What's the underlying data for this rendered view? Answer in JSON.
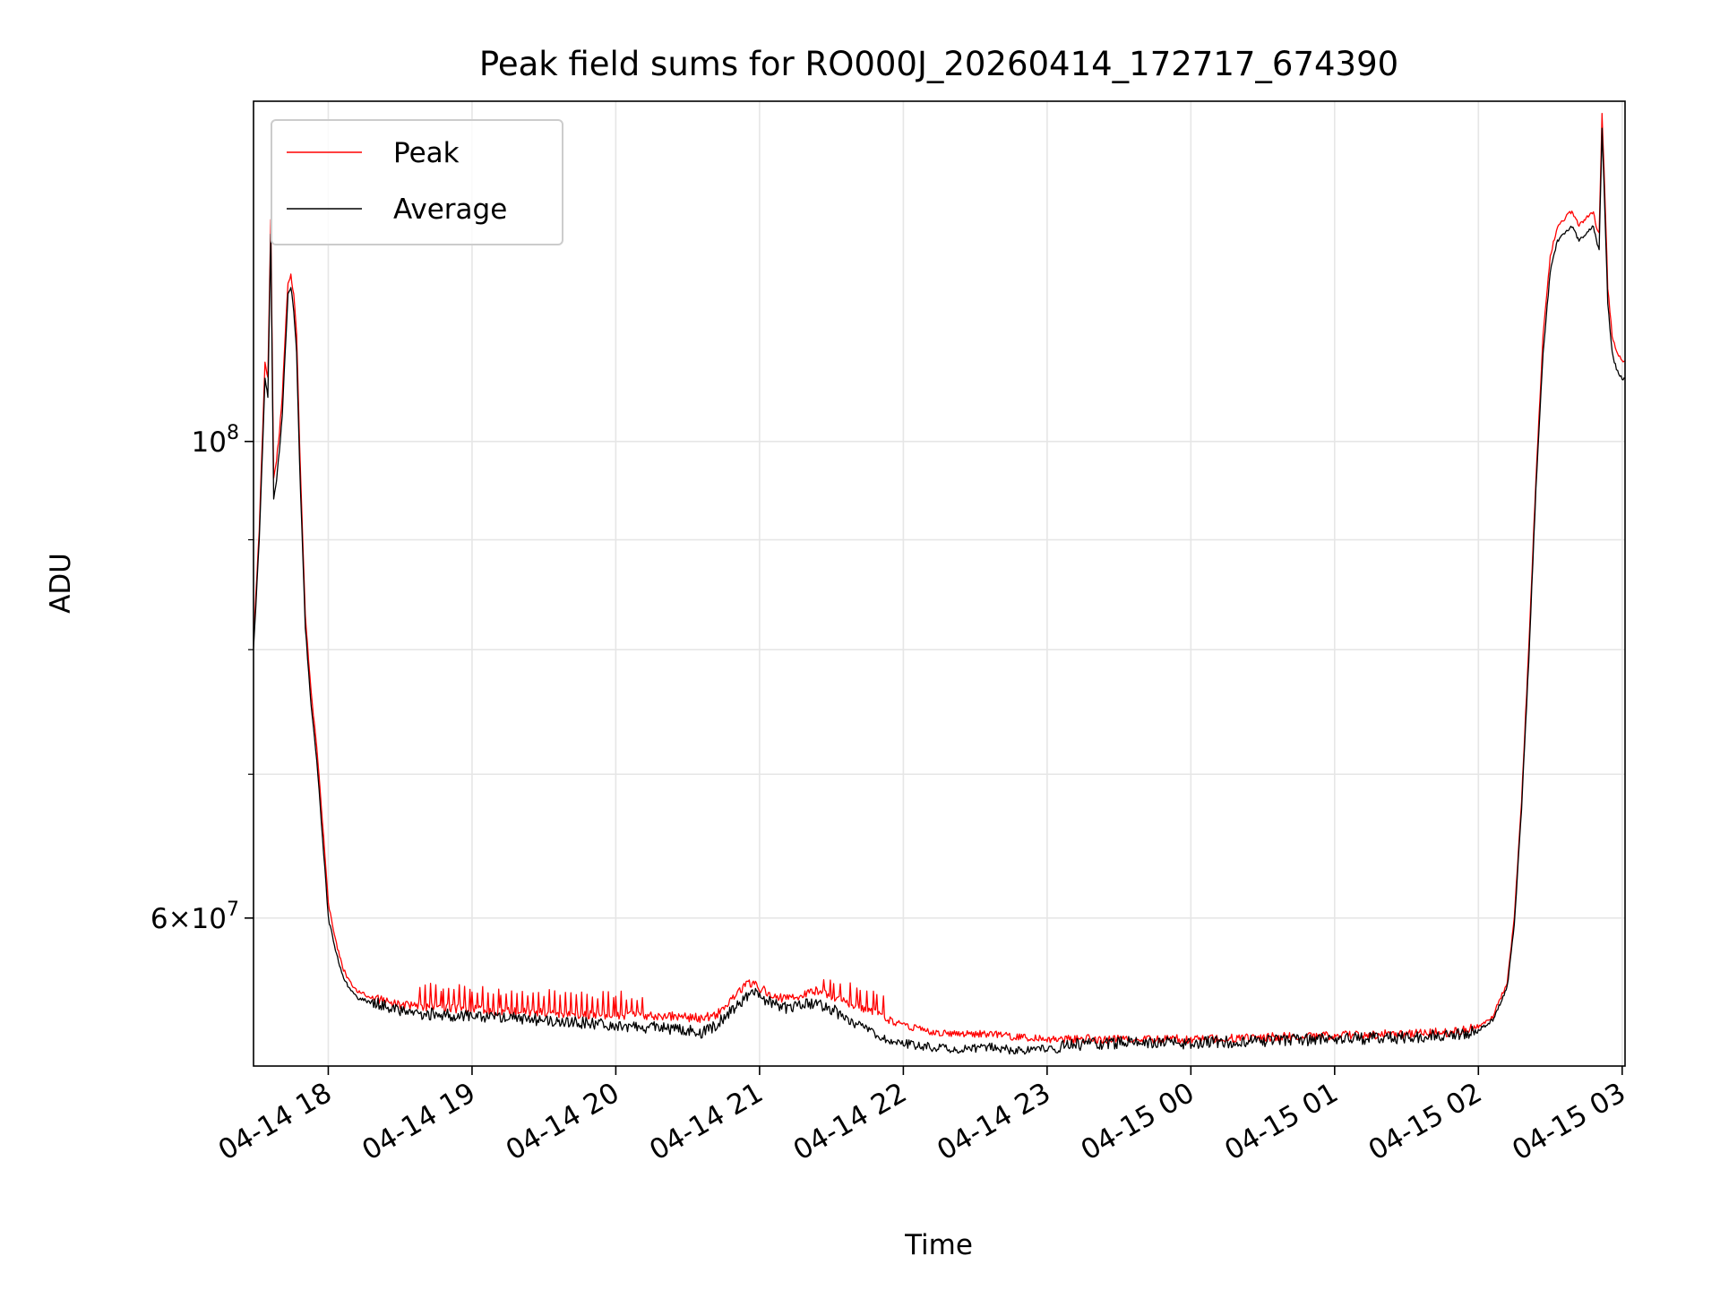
{
  "chart_data": {
    "type": "line",
    "title": "Peak field sums for RO000J_20260414_172717_674390",
    "xlabel": "Time",
    "ylabel": "ADU",
    "yscale": "log",
    "xlim_hours": [
      17.48,
      27.02
    ],
    "ylim": [
      51200000,
      144000000
    ],
    "x_unit": "hours since 2026-04-14 00:00",
    "x_ticks": [
      {
        "value": 18,
        "label": "04-14 18"
      },
      {
        "value": 19,
        "label": "04-14 19"
      },
      {
        "value": 20,
        "label": "04-14 20"
      },
      {
        "value": 21,
        "label": "04-14 21"
      },
      {
        "value": 22,
        "label": "04-14 22"
      },
      {
        "value": 23,
        "label": "04-14 23"
      },
      {
        "value": 24,
        "label": "04-15 00"
      },
      {
        "value": 25,
        "label": "04-15 01"
      },
      {
        "value": 26,
        "label": "04-15 02"
      },
      {
        "value": 27,
        "label": "04-15 03"
      }
    ],
    "y_major_ticks": [
      {
        "value": 100000000,
        "base": "10",
        "exp": "8",
        "mant": ""
      },
      {
        "value": 60000000,
        "base": "10",
        "exp": "7",
        "mant": "6"
      }
    ],
    "y_minor_ticks": [
      60000000,
      70000000,
      80000000,
      90000000,
      100000000
    ],
    "grid": true,
    "legend": {
      "placement": "top-left",
      "entries": [
        {
          "name": "Peak",
          "color": "#ff0000"
        },
        {
          "name": "Average",
          "color": "#000000"
        }
      ]
    },
    "series": [
      {
        "name": "Peak",
        "color": "#ff0000",
        "x": [
          17.48,
          17.52,
          17.56,
          17.58,
          17.6,
          17.62,
          17.64,
          17.66,
          17.68,
          17.7,
          17.72,
          17.74,
          17.76,
          17.78,
          17.8,
          17.84,
          17.88,
          17.92,
          17.96,
          18.0,
          18.05,
          18.1,
          18.15,
          18.2,
          18.3,
          18.4,
          18.5,
          18.6,
          18.8,
          19.0,
          19.2,
          19.5,
          19.8,
          20.0,
          20.2,
          20.4,
          20.6,
          20.7,
          20.8,
          20.9,
          20.95,
          21.0,
          21.1,
          21.2,
          21.3,
          21.4,
          21.5,
          21.6,
          21.7,
          21.8,
          21.9,
          22.0,
          22.1,
          22.2,
          22.4,
          22.6,
          22.7,
          22.8,
          23.0,
          23.2,
          23.5,
          24.0,
          24.5,
          25.0,
          25.5,
          25.8,
          26.0,
          26.1,
          26.15,
          26.2,
          26.25,
          26.3,
          26.35,
          26.4,
          26.45,
          26.5,
          26.55,
          26.6,
          26.65,
          26.7,
          26.75,
          26.8,
          26.82,
          26.84,
          26.86,
          26.88,
          26.9,
          26.93,
          26.96,
          27.0,
          27.02
        ],
        "y": [
          80800000,
          91000000,
          109000000,
          107000000,
          127000000,
          96000000,
          98000000,
          101000000,
          105000000,
          112000000,
          118500000,
          119500000,
          117000000,
          112000000,
          100000000,
          83000000,
          76500000,
          72000000,
          66500000,
          61000000,
          58600000,
          56900000,
          56000000,
          55500000,
          55100000,
          54900000,
          54700000,
          54600000,
          54500000,
          54400000,
          54300000,
          54200000,
          54100000,
          54100000,
          54000000,
          54000000,
          53900000,
          54100000,
          55000000,
          55800000,
          56000000,
          55700000,
          55200000,
          55000000,
          55300000,
          55500000,
          55100000,
          54800000,
          54500000,
          54200000,
          53800000,
          53500000,
          53300000,
          53100000,
          53000000,
          53000000,
          52900000,
          52800000,
          52700000,
          52700000,
          52700000,
          52700000,
          52800000,
          52900000,
          53000000,
          53100000,
          53400000,
          54000000,
          55000000,
          56000000,
          60000000,
          68000000,
          80000000,
          96000000,
          112000000,
          122000000,
          126000000,
          127000000,
          128000000,
          126000000,
          127000000,
          128000000,
          126000000,
          125000000,
          142000000,
          130000000,
          118000000,
          112000000,
          110000000,
          109000000,
          109000000
        ]
      },
      {
        "name": "Average",
        "color": "#000000",
        "x": [
          17.48,
          17.52,
          17.56,
          17.58,
          17.6,
          17.62,
          17.64,
          17.66,
          17.68,
          17.7,
          17.72,
          17.74,
          17.76,
          17.78,
          17.8,
          17.84,
          17.88,
          17.92,
          17.96,
          18.0,
          18.05,
          18.1,
          18.15,
          18.2,
          18.3,
          18.4,
          18.5,
          18.6,
          18.8,
          19.0,
          19.2,
          19.5,
          19.8,
          20.0,
          20.2,
          20.4,
          20.6,
          20.7,
          20.8,
          20.9,
          20.95,
          21.0,
          21.1,
          21.2,
          21.3,
          21.4,
          21.5,
          21.6,
          21.7,
          21.8,
          21.9,
          22.0,
          22.1,
          22.2,
          22.4,
          22.6,
          22.7,
          22.8,
          23.0,
          23.2,
          23.5,
          24.0,
          24.5,
          25.0,
          25.5,
          25.8,
          26.0,
          26.1,
          26.15,
          26.2,
          26.25,
          26.3,
          26.35,
          26.4,
          26.45,
          26.5,
          26.55,
          26.6,
          26.65,
          26.7,
          26.75,
          26.8,
          26.82,
          26.84,
          26.86,
          26.88,
          26.9,
          26.93,
          26.96,
          27.0,
          27.02
        ],
        "y": [
          80000000,
          90000000,
          107000000,
          105000000,
          125000000,
          94000000,
          96000000,
          99000000,
          103000000,
          110000000,
          117000000,
          118000000,
          115000000,
          110000000,
          98000000,
          82000000,
          75500000,
          71000000,
          65500000,
          60000000,
          58000000,
          56400000,
          55600000,
          55100000,
          54800000,
          54600000,
          54400000,
          54200000,
          54100000,
          54000000,
          53900000,
          53800000,
          53600000,
          53500000,
          53400000,
          53300000,
          53100000,
          53500000,
          54300000,
          55100000,
          55400000,
          55100000,
          54700000,
          54500000,
          54700000,
          54800000,
          54400000,
          54000000,
          53700000,
          53300000,
          52900000,
          52700000,
          52600000,
          52500000,
          52400000,
          52500000,
          52400000,
          52300000,
          52400000,
          52400000,
          52500000,
          52500000,
          52600000,
          52700000,
          52800000,
          52900000,
          53200000,
          53800000,
          54700000,
          55700000,
          59500000,
          67500000,
          79000000,
          95000000,
          110000000,
          120000000,
          124000000,
          125000000,
          126000000,
          124000000,
          125000000,
          126000000,
          124000000,
          123000000,
          140000000,
          128000000,
          116000000,
          110000000,
          108000000,
          107000000,
          107000000
        ]
      }
    ]
  }
}
